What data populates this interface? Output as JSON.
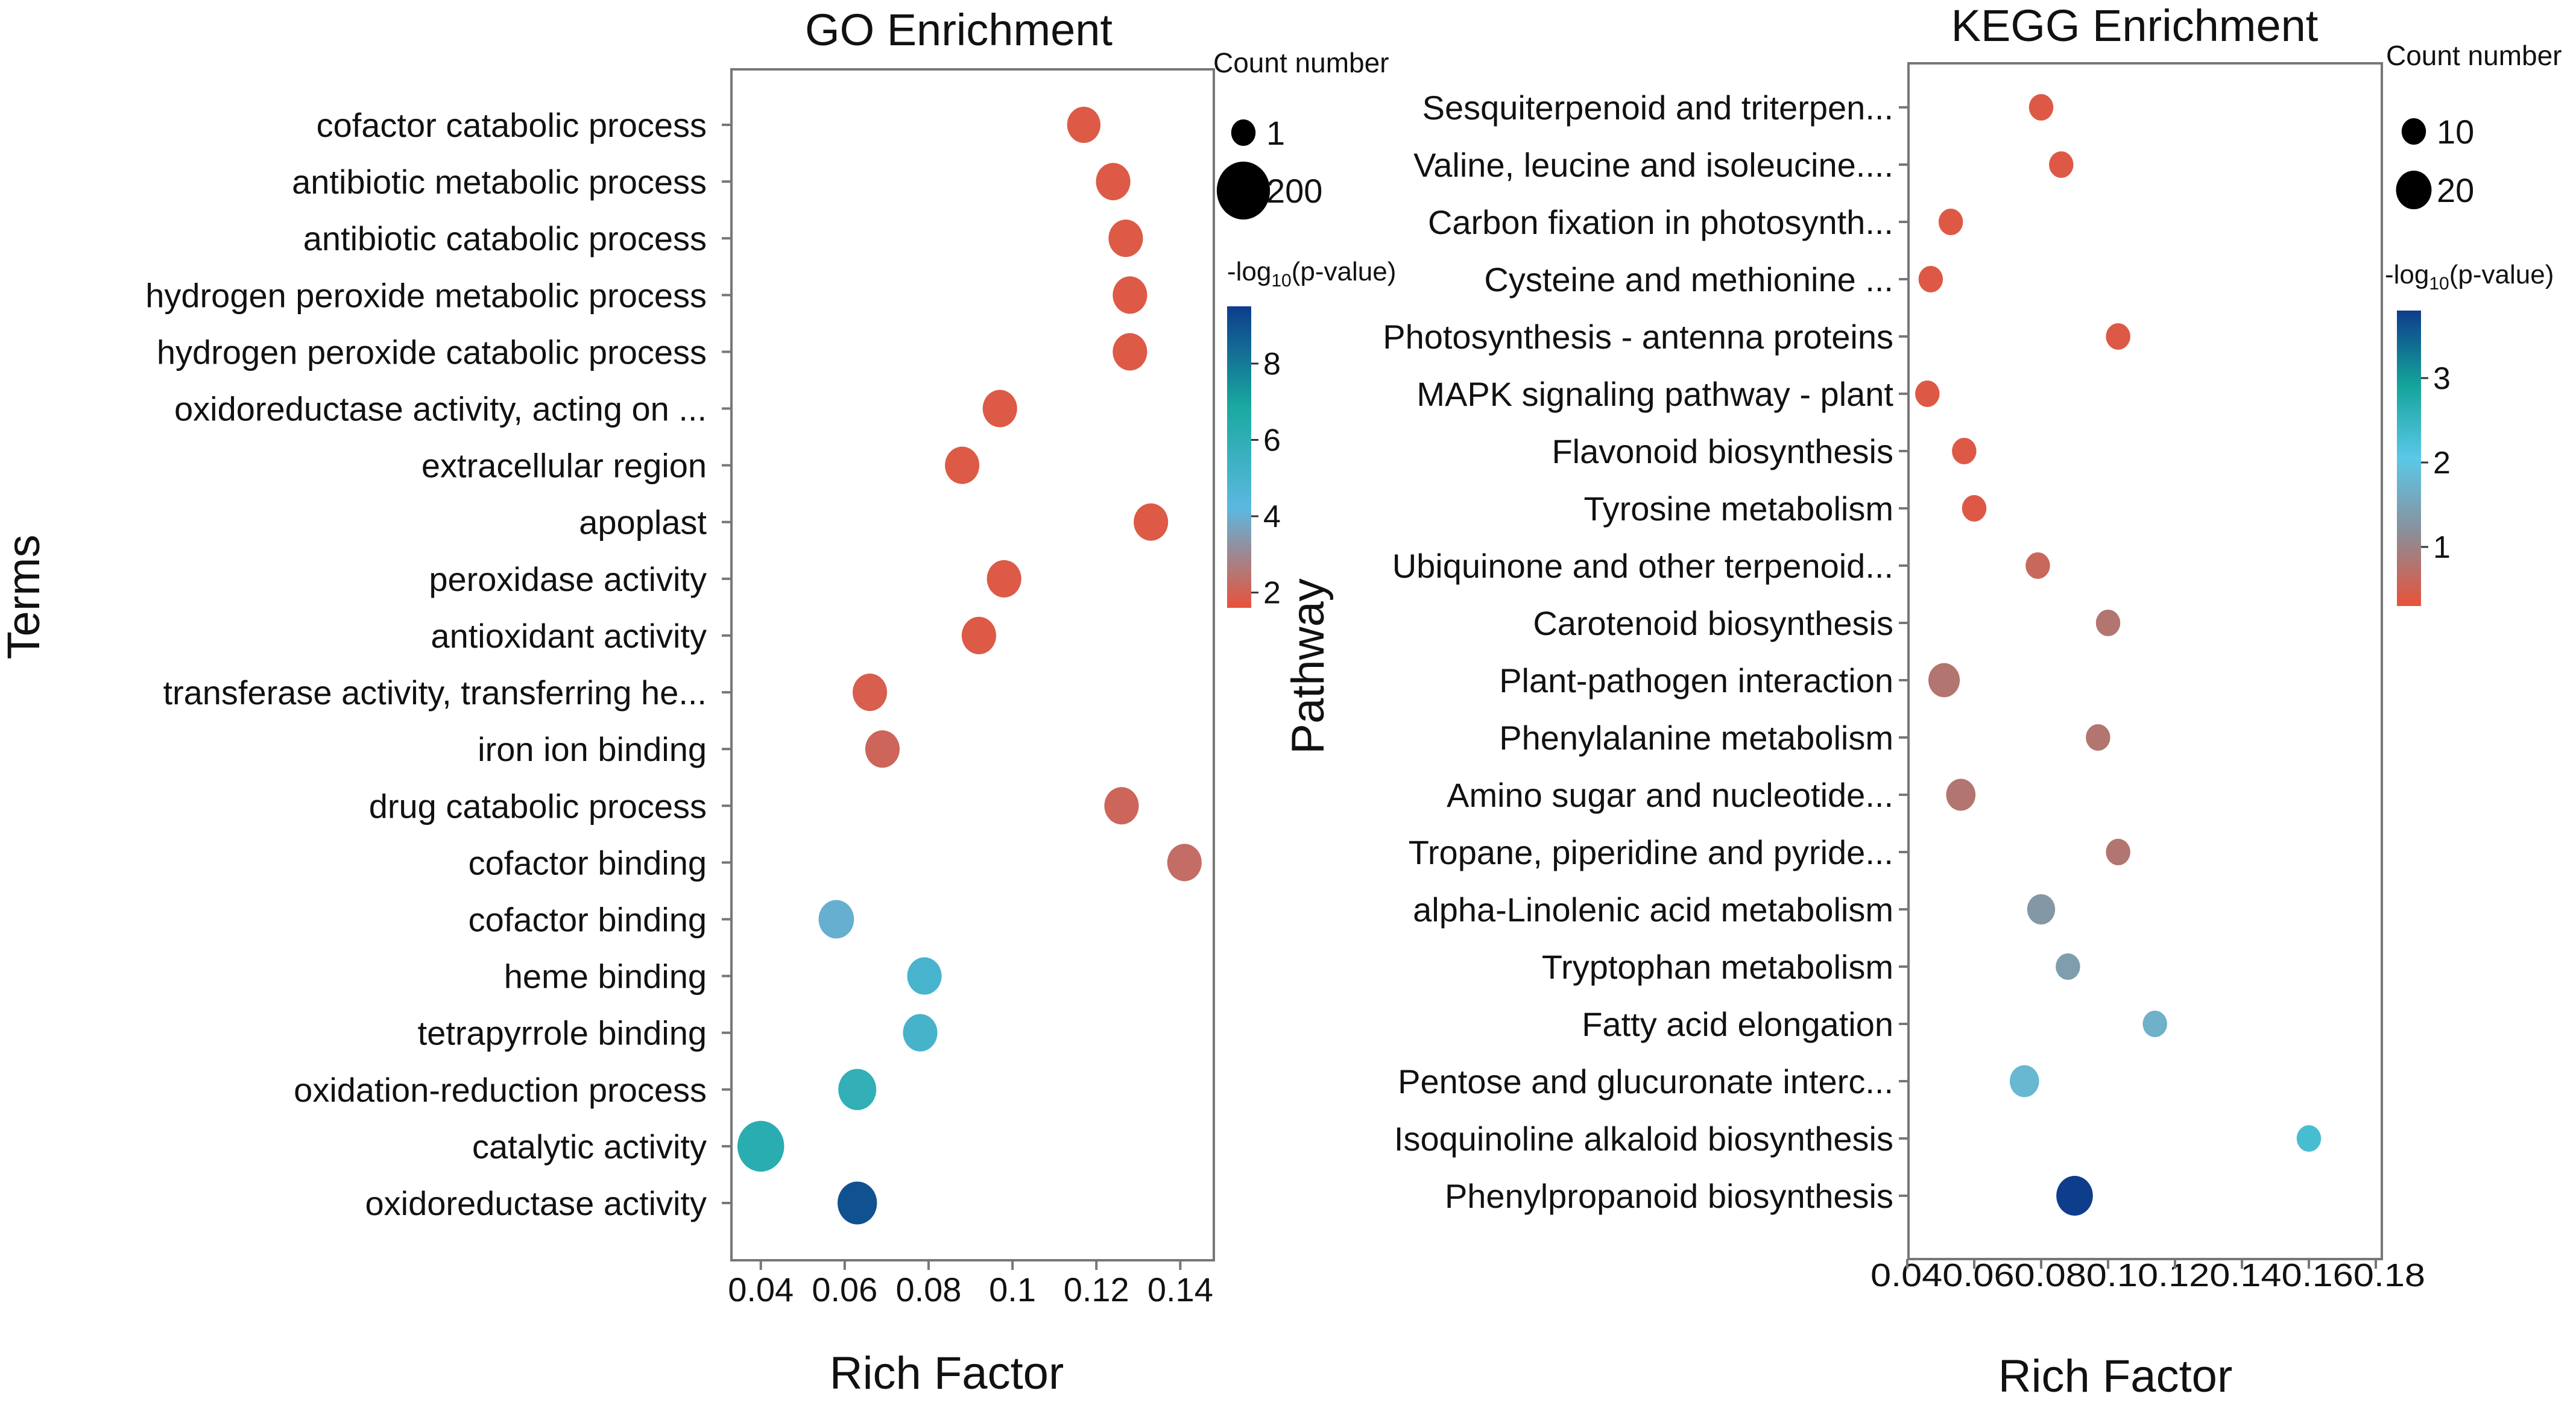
{
  "chart_data": [
    {
      "type": "scatter",
      "title": "GO Enrichment",
      "xlabel": "Rich Factor",
      "ylabel": "Terms",
      "xlim": [
        0.033,
        0.148
      ],
      "xticks": [
        "0.04",
        "0.06",
        "0.08",
        "0.1",
        "0.12",
        "0.14"
      ],
      "size_legend": {
        "title": "Count number",
        "entries": [
          "1",
          "200"
        ],
        "values": [
          1,
          200
        ]
      },
      "color_legend": {
        "title": "-log10(p-value)",
        "min": 1.6,
        "max": 9.5,
        "ticks": [
          "8",
          "6",
          "4",
          "2"
        ],
        "tick_values": [
          8,
          6,
          4,
          2
        ],
        "colors": [
          "#e8523a",
          "#5bb8e0",
          "#1aa9a0",
          "#0e3d8c"
        ]
      },
      "terms": [
        "cofactor catabolic process",
        "antibiotic metabolic process",
        "antibiotic catabolic process",
        "hydrogen peroxide metabolic process",
        "hydrogen peroxide catabolic process",
        "oxidoreductase activity, acting on ...",
        "extracellular region",
        "apoplast",
        "peroxidase activity",
        "antioxidant activity",
        "transferase activity, transferring he...",
        "iron ion binding",
        "drug catabolic process",
        "cofactor binding",
        "cofactor binding",
        "heme binding",
        "tetrapyrrole binding",
        "oxidation-reduction process",
        "catalytic activity",
        "oxidoreductase activity"
      ],
      "rich_factor": [
        0.117,
        0.124,
        0.127,
        0.128,
        0.128,
        0.097,
        0.088,
        0.133,
        0.098,
        0.092,
        0.066,
        0.069,
        0.126,
        0.141,
        0.058,
        0.079,
        0.078,
        0.063,
        0.04,
        0.063
      ],
      "neg_log10_p": [
        1.8,
        1.8,
        1.8,
        1.8,
        1.8,
        1.8,
        1.8,
        1.8,
        1.8,
        1.8,
        1.9,
        2.1,
        2.1,
        2.3,
        4.0,
        5.0,
        5.1,
        5.9,
        6.2,
        9.0
      ],
      "count": [
        20,
        25,
        25,
        25,
        25,
        25,
        25,
        25,
        25,
        25,
        25,
        25,
        25,
        25,
        30,
        25,
        25,
        45,
        120,
        55
      ]
    },
    {
      "type": "scatter",
      "title": "KEGG Enrichment",
      "xlabel": "Rich Factor",
      "ylabel": "Pathway",
      "xlim": [
        0.04,
        0.18
      ],
      "xticks": [
        "0.04",
        "0.06",
        "0.08",
        "0.1",
        "0.12",
        "0.14",
        "0.16",
        "0.18"
      ],
      "xtick_text": "0.040.060.080.10.120.140.160.18",
      "size_legend": {
        "title": "Count number",
        "entries": [
          "10",
          "20"
        ],
        "values": [
          10,
          20
        ]
      },
      "color_legend": {
        "title": "-log10(p-value)",
        "min": 0.3,
        "max": 3.8,
        "ticks": [
          "3",
          "2",
          "1"
        ],
        "tick_values": [
          3,
          2,
          1
        ],
        "colors": [
          "#e8523a",
          "#8a8f99",
          "#5bc8e8",
          "#14a39a",
          "#0e3d8c"
        ]
      },
      "terms": [
        "Sesquiterpenoid and triterpen...",
        "Valine, leucine and isoleucine....",
        "Carbon fixation in photosynth...",
        "Cysteine and methionine ...",
        "Photosynthesis - antenna proteins",
        "MAPK signaling pathway - plant",
        "Flavonoid biosynthesis",
        "Tyrosine metabolism",
        "Ubiquinone and other terpenoid...",
        "Carotenoid biosynthesis",
        "Plant-pathogen interaction",
        "Phenylalanine metabolism",
        "Amino sugar and nucleotide...",
        "Tropane, piperidine and pyride...",
        "alpha-Linolenic acid metabolism",
        "Tryptophan metabolism",
        "Fatty acid elongation",
        "Pentose and glucuronate interc...",
        "Isoquinoline alkaloid biosynthesis",
        "Phenylpropanoid biosynthesis"
      ],
      "rich_factor": [
        0.08,
        0.086,
        0.053,
        0.047,
        0.103,
        0.046,
        0.057,
        0.06,
        0.079,
        0.1,
        0.051,
        0.097,
        0.056,
        0.103,
        0.08,
        0.088,
        0.114,
        0.075,
        0.16,
        0.09
      ],
      "neg_log10_p": [
        0.4,
        0.4,
        0.4,
        0.4,
        0.4,
        0.4,
        0.4,
        0.4,
        0.6,
        0.8,
        0.8,
        0.8,
        0.8,
        0.8,
        1.3,
        1.4,
        1.7,
        1.8,
        2.3,
        3.9
      ],
      "count": [
        7,
        7,
        9,
        9,
        7,
        9,
        9,
        9,
        8,
        9,
        14,
        9,
        12,
        9,
        11,
        10,
        10,
        12,
        10,
        22
      ]
    }
  ]
}
